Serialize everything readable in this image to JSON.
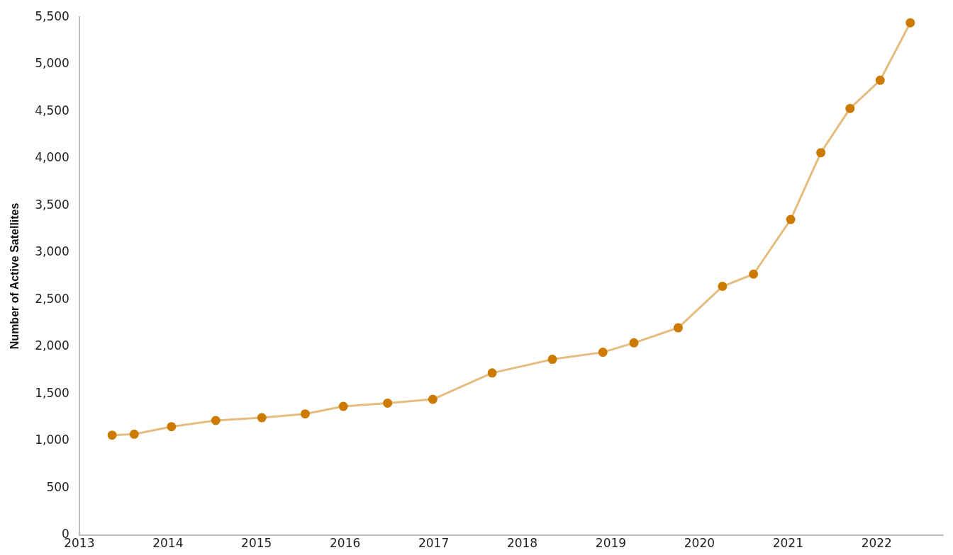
{
  "chart_data": {
    "type": "line",
    "ylabel": "Number of Active Satellites",
    "x": [
      2013.37,
      2013.62,
      2014.04,
      2014.54,
      2015.06,
      2015.55,
      2015.98,
      2016.48,
      2016.99,
      2017.66,
      2018.34,
      2018.91,
      2019.26,
      2019.76,
      2020.26,
      2020.61,
      2021.03,
      2021.37,
      2021.7,
      2022.04,
      2022.38
    ],
    "series": [
      {
        "color": "#cc7a00",
        "values": [
          1060,
          1070,
          1150,
          1215,
          1245,
          1285,
          1365,
          1400,
          1440,
          1720,
          1865,
          1940,
          2040,
          2200,
          2640,
          2770,
          3350,
          4060,
          4530,
          4830,
          5440
        ]
      }
    ],
    "xlim": [
      2013,
      2022.75
    ],
    "xticks": [
      2013,
      2014,
      2015,
      2016,
      2017,
      2018,
      2019,
      2020,
      2021,
      2022
    ],
    "ylim": [
      0,
      5500
    ],
    "yticks": [
      0,
      500,
      {
        "value": 1000,
        "label": "1,000"
      },
      {
        "value": 1500,
        "label": "1,500"
      },
      {
        "value": 2000,
        "label": "2,000"
      },
      {
        "value": 2500,
        "label": "2,500"
      },
      {
        "value": 3000,
        "label": "3,000"
      },
      {
        "value": 3500,
        "label": "3,500"
      },
      {
        "value": 4000,
        "label": "4,000"
      },
      {
        "value": 4500,
        "label": "4,500"
      },
      {
        "value": 5000,
        "label": "5,000"
      },
      {
        "value": 5500,
        "label": "5,500"
      }
    ],
    "grid": false,
    "legend": false,
    "marker": "circle",
    "line_style": "solid"
  }
}
